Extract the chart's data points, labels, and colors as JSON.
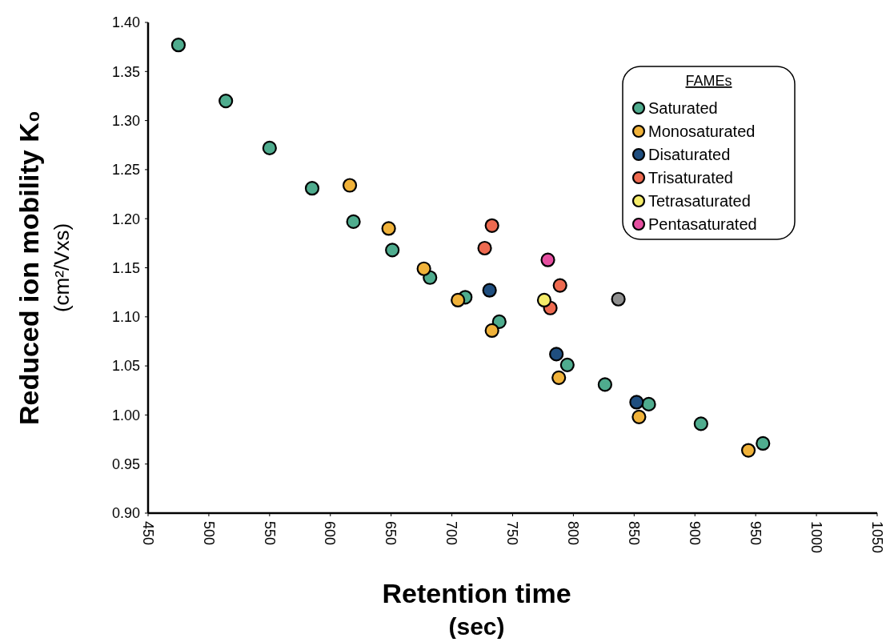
{
  "chart_data": {
    "type": "scatter",
    "xlabel": "Retention time\n(sec)",
    "ylabel": "Reduced ion mobility K₀\n(cm²/Vxs)",
    "legend_title": "FAMEs",
    "legend": "top right",
    "marker": "circle",
    "grid": false,
    "xlim": [
      450,
      1050
    ],
    "xticks": [
      450,
      500,
      550,
      600,
      650,
      700,
      750,
      800,
      850,
      900,
      950,
      1000,
      1050
    ],
    "ylim": [
      0.9,
      1.4
    ],
    "yticks": [
      {
        "value": 0.9,
        "label": "0.90"
      },
      {
        "value": 0.95,
        "label": "0.95"
      },
      {
        "value": 1.0,
        "label": "1.00"
      },
      {
        "value": 1.05,
        "label": "1.05"
      },
      {
        "value": 1.1,
        "label": "1.10"
      },
      {
        "value": 1.15,
        "label": "1.15"
      },
      {
        "value": 1.2,
        "label": "1.20"
      },
      {
        "value": 1.25,
        "label": "1.25"
      },
      {
        "value": 1.3,
        "label": "1.30"
      },
      {
        "value": 1.35,
        "label": "1.35"
      },
      {
        "value": 1.4,
        "label": "1.40"
      }
    ],
    "series": [
      {
        "name": "Saturated",
        "color": "#4fac8e",
        "x": [
          475,
          514,
          550,
          585,
          619,
          651,
          682,
          711,
          739,
          795,
          826,
          862,
          905,
          956
        ],
        "values": [
          1.377,
          1.32,
          1.272,
          1.231,
          1.197,
          1.168,
          1.14,
          1.12,
          1.095,
          1.051,
          1.031,
          1.011,
          0.991,
          0.971
        ]
      },
      {
        "name": "Monosaturated",
        "color": "#f0b23a",
        "x": [
          616,
          648,
          677,
          705,
          733,
          788,
          854,
          944
        ],
        "values": [
          1.234,
          1.19,
          1.149,
          1.117,
          1.086,
          1.038,
          0.998,
          0.964
        ]
      },
      {
        "name": "Disaturated",
        "color": "#1f4e7f",
        "x": [
          731,
          786,
          852
        ],
        "values": [
          1.127,
          1.062,
          1.013
        ]
      },
      {
        "name": "Trisaturated",
        "color": "#ee6a50",
        "x": [
          733,
          727,
          789,
          781
        ],
        "values": [
          1.193,
          1.17,
          1.132,
          1.109
        ]
      },
      {
        "name": "Tetrasaturated",
        "color": "#f5ec6a",
        "x": [
          776
        ],
        "values": [
          1.117
        ]
      },
      {
        "name": "Pentasaturated",
        "color": "#e54fa0",
        "x": [
          779
        ],
        "values": [
          1.158
        ]
      },
      {
        "color": "#8f8f8f",
        "x": [
          837
        ],
        "values": [
          1.118
        ]
      }
    ]
  }
}
